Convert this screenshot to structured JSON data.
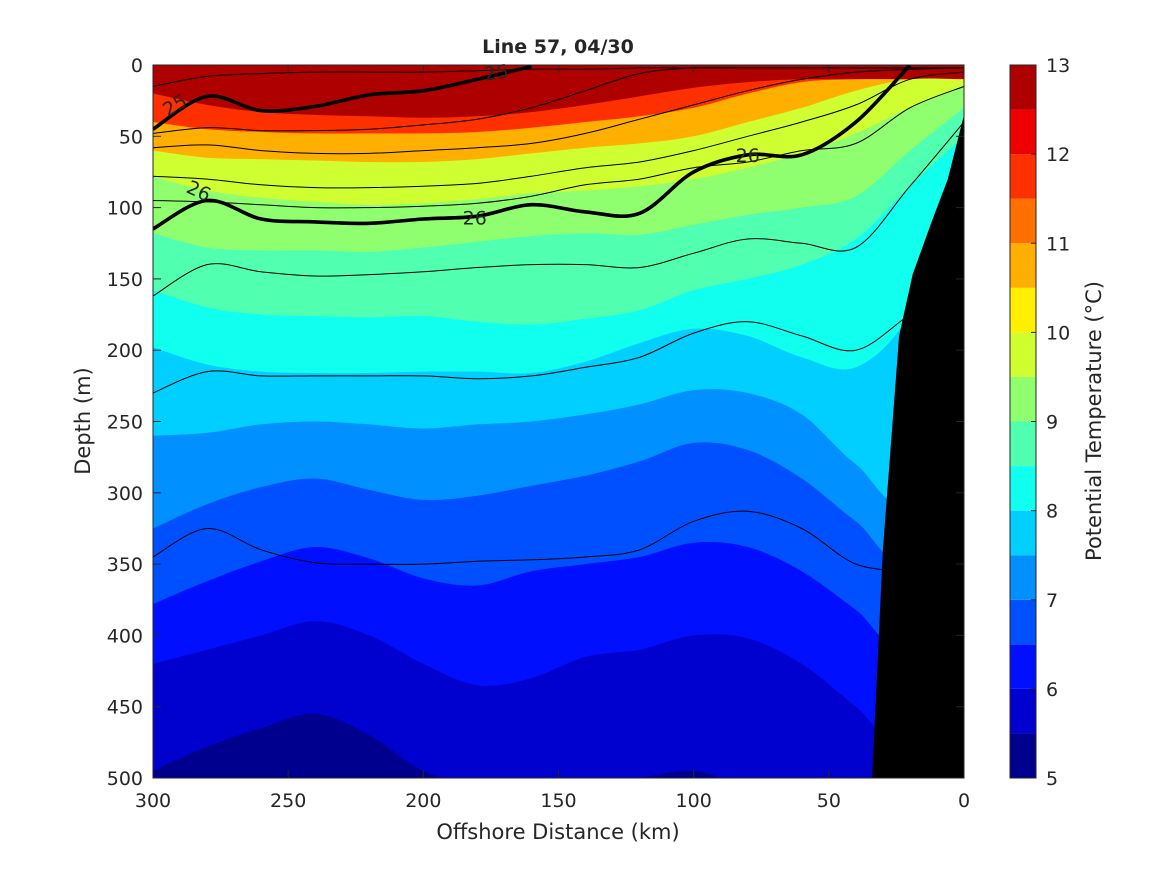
{
  "chart_data": {
    "type": "heatmap",
    "title": "Line 57, 04/30",
    "xlabel": "Offshore Distance (km)",
    "ylabel": "Depth (m)",
    "colorbar_label": "Potential Temperature (°C)",
    "xlim": [
      300,
      0
    ],
    "ylim": [
      500,
      0
    ],
    "x_ticks": [
      300,
      250,
      200,
      150,
      100,
      50,
      0
    ],
    "y_ticks": [
      0,
      50,
      100,
      150,
      200,
      250,
      300,
      350,
      400,
      450,
      500
    ],
    "colorbar": {
      "range": [
        5,
        13
      ],
      "ticks": [
        5,
        6,
        7,
        8,
        9,
        10,
        11,
        12,
        13
      ],
      "levels": [
        5,
        5.5,
        6,
        6.5,
        7,
        7.5,
        8,
        8.5,
        9,
        9.5,
        10,
        10.5,
        11,
        11.5,
        12,
        12.5,
        13
      ],
      "colors": [
        "#00008f",
        "#0000cf",
        "#0010ff",
        "#0050ff",
        "#0090ff",
        "#00cfff",
        "#10ffef",
        "#50ffaf",
        "#90ff6f",
        "#cfff30",
        "#ffef00",
        "#ffaf00",
        "#ff7000",
        "#ff3000",
        "#ef0000",
        "#af0000"
      ]
    },
    "x_grid": [
      300,
      280,
      260,
      240,
      220,
      200,
      180,
      160,
      140,
      120,
      100,
      80,
      60,
      40,
      20,
      0
    ],
    "isotherms": [
      {
        "temperature": 12,
        "depths": [
          20,
          28,
          33,
          35,
          36,
          37,
          36,
          33,
          28,
          22,
          16,
          12,
          10,
          10,
          10,
          10
        ]
      },
      {
        "temperature": 11,
        "depths": [
          40,
          45,
          47,
          48,
          48,
          48,
          47,
          44,
          40,
          36,
          30,
          20,
          12,
          10,
          10,
          10
        ]
      },
      {
        "temperature": 10,
        "depths": [
          60,
          65,
          66,
          67,
          68,
          68,
          66,
          62,
          58,
          55,
          50,
          40,
          30,
          18,
          10,
          10
        ]
      },
      {
        "temperature": 9.5,
        "depths": [
          78,
          88,
          93,
          96,
          98,
          97,
          94,
          90,
          88,
          85,
          80,
          72,
          62,
          48,
          30,
          15
        ]
      },
      {
        "temperature": 9,
        "depths": [
          118,
          128,
          130,
          130,
          131,
          128,
          124,
          120,
          118,
          119,
          112,
          105,
          100,
          92,
          60,
          30
        ]
      },
      {
        "temperature": 8.5,
        "depths": [
          158,
          170,
          175,
          176,
          177,
          176,
          180,
          182,
          178,
          172,
          158,
          150,
          140,
          122,
          85,
          50
        ]
      },
      {
        "temperature": 8,
        "depths": [
          198,
          210,
          215,
          216,
          216,
          215,
          215,
          216,
          208,
          195,
          185,
          190,
          205,
          212,
          175,
          90
        ]
      },
      {
        "temperature": 7.5,
        "depths": [
          260,
          258,
          252,
          250,
          252,
          255,
          252,
          250,
          245,
          238,
          228,
          230,
          245,
          280,
          300,
          150
        ]
      },
      {
        "temperature": 7,
        "depths": [
          325,
          308,
          296,
          290,
          298,
          305,
          302,
          295,
          288,
          278,
          265,
          270,
          290,
          320,
          345,
          230
        ]
      },
      {
        "temperature": 6.5,
        "depths": [
          378,
          362,
          348,
          338,
          346,
          360,
          365,
          355,
          350,
          345,
          335,
          338,
          355,
          382,
          410,
          320
        ]
      },
      {
        "temperature": 6,
        "depths": [
          420,
          410,
          400,
          390,
          400,
          420,
          435,
          430,
          415,
          410,
          400,
          402,
          420,
          450,
          480,
          420
        ]
      },
      {
        "temperature": 5.5,
        "depths": [
          495,
          478,
          465,
          455,
          470,
          495,
          505,
          505,
          505,
          500,
          495,
          505,
          505,
          505,
          505,
          505
        ]
      }
    ],
    "density_contours": [
      {
        "value": 24.8,
        "depths": [
          15,
          8,
          6,
          5,
          5,
          5,
          4,
          3,
          3,
          2,
          2,
          2,
          2,
          2,
          2,
          2
        ]
      },
      {
        "value": 25,
        "depths": [
          45,
          22,
          32,
          29,
          21,
          18,
          10,
          1,
          null,
          null,
          null,
          null,
          null,
          null,
          null,
          null
        ]
      },
      {
        "value": 25.2,
        "depths": [
          48,
          44,
          46,
          46,
          45,
          42,
          38,
          30,
          18,
          6,
          2,
          2,
          2,
          2,
          2,
          2
        ]
      },
      {
        "value": 25.4,
        "depths": [
          58,
          56,
          60,
          62,
          62,
          60,
          58,
          55,
          48,
          38,
          28,
          18,
          10,
          5,
          3,
          2
        ]
      },
      {
        "value": 25.6,
        "depths": [
          78,
          80,
          84,
          86,
          86,
          85,
          83,
          78,
          72,
          68,
          60,
          50,
          40,
          28,
          10,
          5
        ]
      },
      {
        "value": 25.8,
        "depths": [
          95,
          96,
          98,
          100,
          100,
          99,
          97,
          92,
          84,
          80,
          72,
          68,
          60,
          55,
          30,
          15
        ]
      },
      {
        "value": 26,
        "depths": [
          115,
          95,
          108,
          110,
          111,
          108,
          106,
          98,
          103,
          104,
          75,
          63,
          63,
          40,
          0,
          null
        ]
      },
      {
        "value": 26.1,
        "depths": [
          162,
          140,
          145,
          148,
          147,
          145,
          142,
          140,
          140,
          142,
          132,
          122,
          125,
          128,
          85,
          40
        ]
      },
      {
        "value": 26.2,
        "depths": [
          230,
          215,
          218,
          218,
          218,
          218,
          220,
          218,
          212,
          205,
          188,
          180,
          190,
          200,
          175,
          150
        ]
      },
      {
        "value": 26.4,
        "depths": [
          345,
          325,
          340,
          349,
          350,
          350,
          348,
          347,
          345,
          340,
          320,
          313,
          325,
          350,
          355,
          null
        ]
      }
    ],
    "contour_labels": [
      {
        "text": "25",
        "x": 292,
        "depth": 28,
        "angle": -30
      },
      {
        "text": "25",
        "x": 173,
        "depth": 5,
        "angle": -8
      },
      {
        "text": "26",
        "x": 283,
        "depth": 88,
        "angle": 25
      },
      {
        "text": "26",
        "x": 181,
        "depth": 107,
        "angle": 0
      },
      {
        "text": "26",
        "x": 80,
        "depth": 63,
        "angle": 0
      }
    ],
    "bathymetry": {
      "x": [
        34,
        30,
        24,
        19,
        12,
        6,
        0,
        0
      ],
      "depth": [
        500,
        340,
        190,
        147,
        110,
        80,
        35,
        500
      ]
    }
  }
}
